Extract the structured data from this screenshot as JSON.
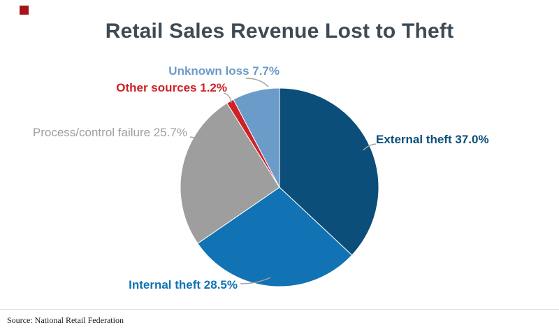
{
  "page": {
    "title": "Retail Sales Revenue Lost to Theft",
    "source": "Source: National Retail Federation"
  },
  "brand": {
    "logo_color": "#a5131c"
  },
  "chart_data": {
    "type": "pie",
    "title": "Retail Sales Revenue Lost to Theft",
    "start_angle_deg": 0,
    "direction": "clockwise",
    "legend_position": "outside-labels",
    "slices": [
      {
        "id": "external-theft",
        "name": "External theft",
        "value": 37.0,
        "color": "#0b4e79",
        "label": "External theft 37.0%"
      },
      {
        "id": "internal-theft",
        "name": "Internal theft",
        "value": 28.5,
        "color": "#1173b4",
        "label": "Internal theft 28.5%"
      },
      {
        "id": "process-control-failure",
        "name": "Process/control failure",
        "value": 25.7,
        "color": "#9e9e9e",
        "label": "Process/control failure 25.7%"
      },
      {
        "id": "other-sources",
        "name": "Other sources",
        "value": 1.2,
        "color": "#cf2128",
        "label": "Other sources 1.2%"
      },
      {
        "id": "unknown-loss",
        "name": "Unknown loss",
        "value": 7.7,
        "color": "#6b9bc8",
        "label": "Unknown loss 7.7%"
      }
    ]
  }
}
